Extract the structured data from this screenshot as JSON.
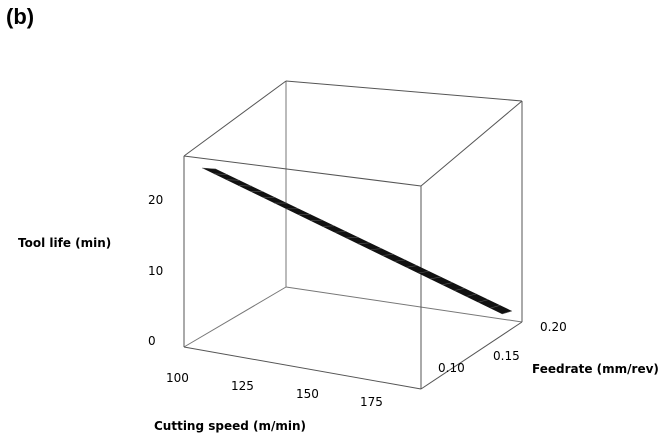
{
  "panel_label": "(b)",
  "chart_data": {
    "type": "surface",
    "title": "",
    "xlabel": "Cutting speed (m/min)",
    "ylabel": "Feedrate (mm/rev)",
    "zlabel": "Tool life (min)",
    "x_ticks": [
      "100",
      "125",
      "150",
      "175"
    ],
    "y_ticks": [
      "0.10",
      "0.15",
      "0.20"
    ],
    "z_ticks": [
      "0",
      "10",
      "20"
    ],
    "xlim": [
      100,
      190
    ],
    "ylim": [
      0.08,
      0.2
    ],
    "zlim": [
      0,
      25
    ],
    "surface": {
      "description_points": [
        {
          "x": 100,
          "y": 0.2,
          "z": 25
        },
        {
          "x": 190,
          "y": 0.2,
          "z": 0
        }
      ]
    },
    "colors": {
      "surface": "#111111",
      "box": "#555555"
    }
  }
}
